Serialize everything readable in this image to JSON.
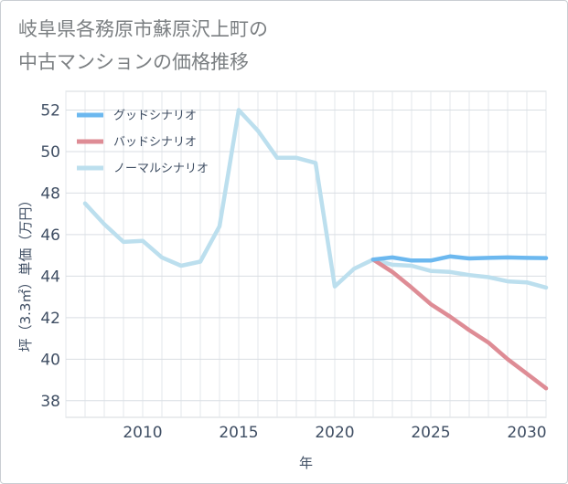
{
  "title_line1": "岐阜県各務原市蘇原沢上町の",
  "title_line2": "中古マンションの価格推移",
  "chart_data": {
    "type": "line",
    "title": "岐阜県各務原市蘇原沢上町の中古マンションの価格推移",
    "xlabel": "年",
    "ylabel": "坪（3.3㎡）単価（万円）",
    "xlim": [
      2006,
      2031
    ],
    "ylim": [
      37.2,
      52.9
    ],
    "x_ticks": [
      2010,
      2015,
      2020,
      2025,
      2030
    ],
    "y_ticks": [
      38,
      40,
      42,
      44,
      46,
      48,
      50,
      52
    ],
    "grid": true,
    "legend_position": "top-left",
    "series": [
      {
        "name": "グッドシナリオ",
        "color": "#6cb8ef",
        "x": [
          2022,
          2023,
          2024,
          2025,
          2026,
          2027,
          2028,
          2029,
          2030,
          2031
        ],
        "values": [
          44.8,
          44.9,
          44.75,
          44.75,
          44.95,
          44.85,
          44.88,
          44.9,
          44.88,
          44.87
        ]
      },
      {
        "name": "バッドシナリオ",
        "color": "#de8c95",
        "x": [
          2022,
          2023,
          2024,
          2025,
          2026,
          2027,
          2028,
          2029,
          2030,
          2031
        ],
        "values": [
          44.8,
          44.2,
          43.45,
          42.65,
          42.05,
          41.4,
          40.8,
          40.0,
          39.3,
          38.6
        ]
      },
      {
        "name": "ノーマルシナリオ",
        "color": "#bcdfee",
        "x": [
          2007,
          2008,
          2009,
          2010,
          2011,
          2012,
          2013,
          2014,
          2015,
          2016,
          2017,
          2018,
          2019,
          2020,
          2021,
          2022,
          2023,
          2024,
          2025,
          2026,
          2027,
          2028,
          2029,
          2030,
          2031
        ],
        "values": [
          47.5,
          46.5,
          45.65,
          45.7,
          44.9,
          44.5,
          44.7,
          46.4,
          52.0,
          51.0,
          49.7,
          49.7,
          49.45,
          43.5,
          44.35,
          44.8,
          44.55,
          44.5,
          44.25,
          44.2,
          44.05,
          43.95,
          43.75,
          43.7,
          43.45
        ]
      }
    ]
  }
}
